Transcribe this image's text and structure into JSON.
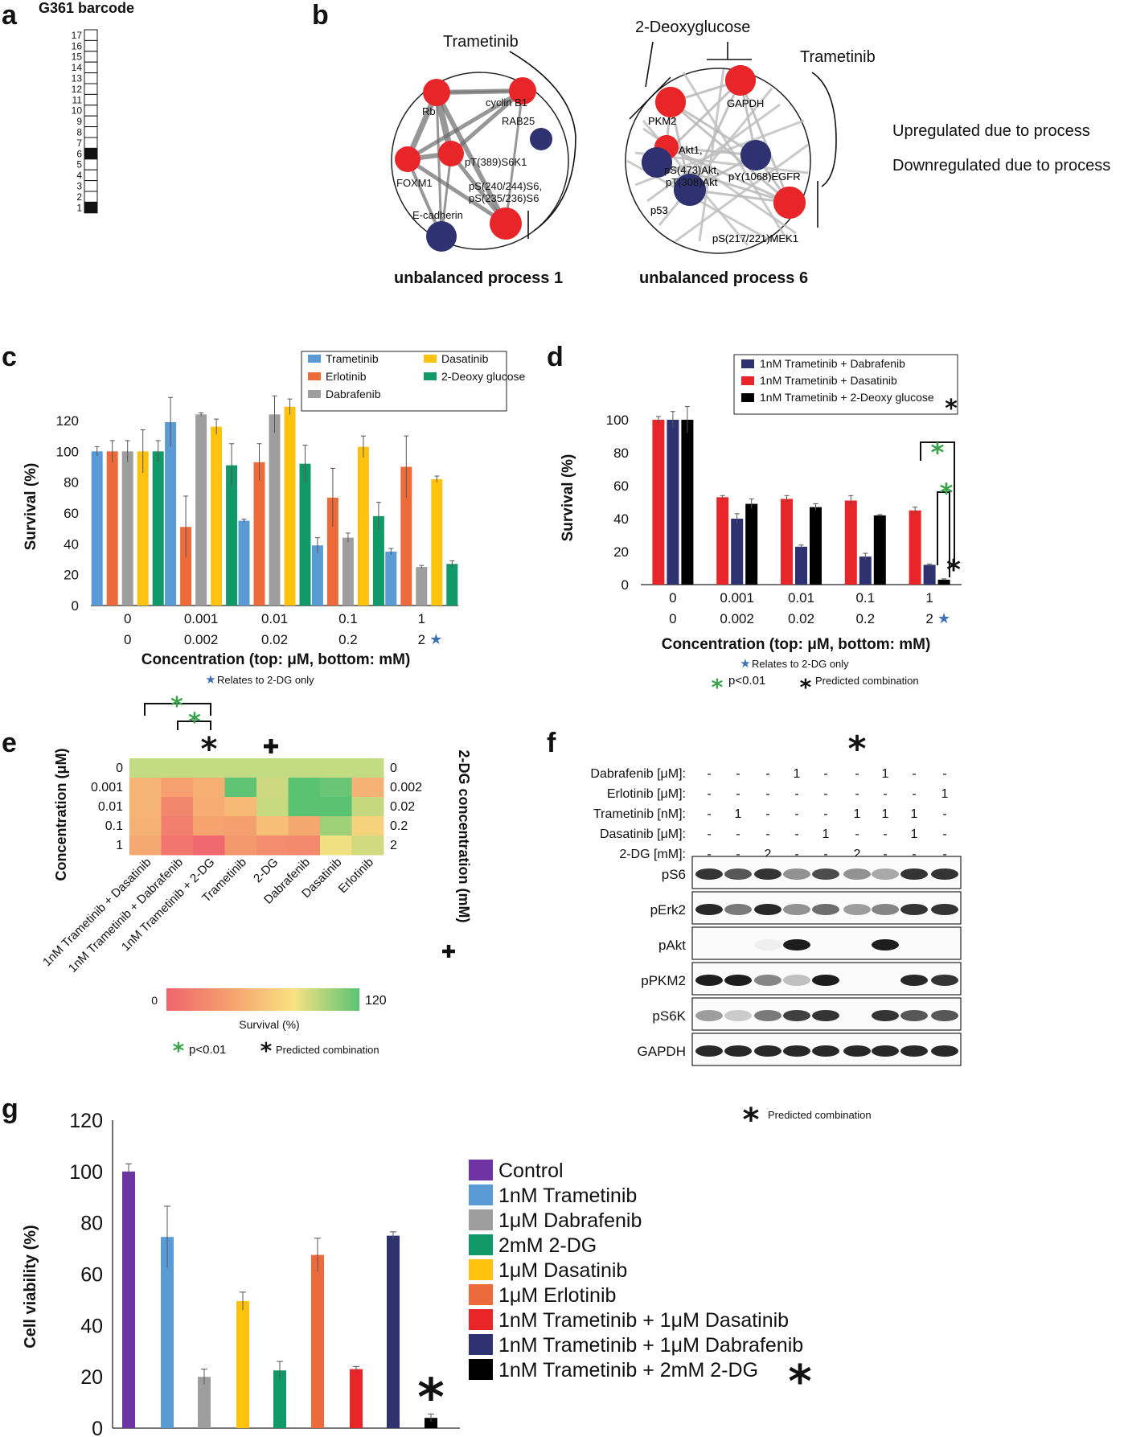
{
  "panel_labels": {
    "a": "a",
    "b": "b",
    "c": "c",
    "d": "d",
    "e": "e",
    "f": "f",
    "g": "g"
  },
  "colors": {
    "trametinib": "#5B9BD5",
    "erlotinib": "#ED6B3A",
    "dabrafenib": "#9E9E9E",
    "dasatinib": "#FFC20E",
    "dg": "#12996A",
    "red": "#E8262A",
    "navy": "#2F3270",
    "black": "#000000",
    "purple": "#6F33A3",
    "star_blue": "#3F6FB5",
    "star_green": "#3AA24A"
  },
  "panel_a": {
    "title": "G361 barcode",
    "rows": [
      "17",
      "16",
      "15",
      "14",
      "13",
      "12",
      "11",
      "10",
      "9",
      "8",
      "7",
      "6",
      "5",
      "4",
      "3",
      "2",
      "1"
    ],
    "filled": [
      "6",
      "1"
    ]
  },
  "panel_b": {
    "process1": {
      "label": "unbalanced process 1",
      "drug_top": "Trametinib",
      "nodes": [
        {
          "id": "Rb",
          "label": "Rb",
          "color": "red"
        },
        {
          "id": "cyclinB1",
          "label": "cyclin B1",
          "color": "red"
        },
        {
          "id": "RAB25",
          "label": "RAB25",
          "color": "navy"
        },
        {
          "id": "pT389",
          "label": "pT(389)S6K1",
          "color": "red"
        },
        {
          "id": "FOXM1",
          "label": "FOXM1",
          "color": "red"
        },
        {
          "id": "pS6",
          "label": "pS(240/244)S6,",
          "label2": "pS(235/236)S6",
          "color": "red"
        },
        {
          "id": "Ecad",
          "label": "E-cadherin",
          "color": "navy"
        }
      ]
    },
    "process6": {
      "label": "unbalanced process 6",
      "drug_top": "2-Deoxyglucose",
      "drug_right": "Trametinib",
      "nodes": [
        {
          "id": "PKM2",
          "label": "PKM2",
          "color": "red"
        },
        {
          "id": "GAPDH",
          "label": "GAPDH",
          "color": "red"
        },
        {
          "id": "Akt1",
          "label": "Akt1,",
          "color": "red"
        },
        {
          "id": "pS473",
          "label": "pS(473)Akt,",
          "label2": "pT(308)Akt",
          "color": "navy"
        },
        {
          "id": "EGFR",
          "label": "pY(1068)EGFR",
          "color": "navy"
        },
        {
          "id": "p53",
          "label": "p53",
          "color": "navy"
        },
        {
          "id": "MEK1",
          "label": "pS(217/221)MEK1",
          "color": "red"
        }
      ]
    },
    "legend": {
      "up": "Upregulated due to process",
      "down": "Downregulated due to process"
    }
  },
  "chart_data": [
    {
      "panel": "c",
      "type": "bar",
      "ylabel": "Survival (%)",
      "xlabel": "Concentration (top: μM, bottom: mM)",
      "ylim": [
        0,
        120
      ],
      "yticks": [
        0,
        20,
        40,
        60,
        80,
        100,
        120
      ],
      "categories_top": [
        "0",
        "0.001",
        "0.01",
        "0.1",
        "1"
      ],
      "categories_bottom": [
        "0",
        "0.002",
        "0.02",
        "0.2",
        "2"
      ],
      "series": [
        {
          "name": "Trametinib",
          "color": "#5B9BD5",
          "values": [
            100,
            119,
            55,
            39,
            35
          ],
          "errors": [
            3,
            16,
            1,
            5,
            2
          ]
        },
        {
          "name": "Erlotinib",
          "color": "#ED6B3A",
          "values": [
            100,
            51,
            93,
            70,
            90
          ],
          "errors": [
            7,
            20,
            12,
            19,
            20
          ]
        },
        {
          "name": "Dabrafenib",
          "color": "#9E9E9E",
          "values": [
            100,
            124,
            124,
            44,
            25
          ],
          "errors": [
            7,
            1,
            12,
            3,
            1
          ]
        },
        {
          "name": "Dasatinib",
          "color": "#FFC20E",
          "values": [
            100,
            116,
            129,
            103,
            82
          ],
          "errors": [
            14,
            5,
            5,
            7,
            2
          ]
        },
        {
          "name": "2-Deoxy glucose",
          "color": "#12996A",
          "values": [
            100,
            91,
            92,
            58,
            27
          ],
          "errors": [
            7,
            14,
            12,
            9,
            2
          ]
        }
      ],
      "note": "Relates to 2-DG only"
    },
    {
      "panel": "d",
      "type": "bar",
      "ylabel": "Survival (%)",
      "xlabel": "Concentration (top: μM, bottom: mM)",
      "ylim": [
        0,
        100
      ],
      "yticks": [
        0,
        20,
        40,
        60,
        80,
        100
      ],
      "categories_top": [
        "0",
        "0.001",
        "0.01",
        "0.1",
        "1"
      ],
      "categories_bottom": [
        "0",
        "0.002",
        "0.02",
        "0.2",
        "2"
      ],
      "series": [
        {
          "name": "1nM Trametinib + Dasatinib",
          "color": "#E8262A",
          "values": [
            100,
            53,
            52,
            51,
            45
          ],
          "errors": [
            2,
            1,
            2,
            3,
            2
          ]
        },
        {
          "name": "1nM Trametinib + Dabrafenib",
          "color": "#2F3270",
          "values": [
            100,
            40,
            23,
            17,
            12
          ],
          "errors": [
            5,
            3,
            1,
            2,
            0.5
          ]
        },
        {
          "name": "1nM Trametinib + 2-Deoxy glucose",
          "color": "#000000",
          "values": [
            100,
            49,
            47,
            42,
            3
          ],
          "errors": [
            8,
            3,
            2,
            0.5,
            0.5
          ]
        }
      ],
      "legend_order": [
        "1nM Trametinib + Dabrafenib",
        "1nM Trametinib + Dasatinib",
        "1nM Trametinib + 2-Deoxy glucose"
      ],
      "note": "Relates to 2-DG only",
      "sig": "p<0.01",
      "pred": "Predicted combination"
    },
    {
      "panel": "e",
      "type": "heatmap",
      "ylabel": "Concentration (μM)",
      "y2label": "2-DG concentration (mM)",
      "rows_left": [
        "0",
        "0.001",
        "0.01",
        "0.1",
        "1"
      ],
      "rows_right": [
        "0",
        "0.002",
        "0.02",
        "0.2",
        "2"
      ],
      "columns": [
        "1nM Trametinib + Dasatinib",
        "1nM Trametinib + Dabrafenib",
        "1nM Trametinib + 2-DG",
        "Trametinib",
        "2-DG",
        "Dabrafenib",
        "Dasatinib",
        "Erlotinib"
      ],
      "values": [
        [
          100,
          100,
          100,
          100,
          100,
          100,
          100,
          100
        ],
        [
          53,
          40,
          49,
          119,
          91,
          124,
          116,
          51
        ],
        [
          52,
          23,
          47,
          55,
          92,
          124,
          129,
          93
        ],
        [
          51,
          17,
          42,
          39,
          58,
          44,
          103,
          70
        ],
        [
          45,
          12,
          3,
          35,
          27,
          25,
          82,
          90
        ]
      ],
      "scale_min": "0",
      "scale_max": "120",
      "scale_label": "Survival (%)",
      "sig": "p<0.01",
      "pred": "Predicted combination"
    },
    {
      "panel": "g",
      "type": "bar",
      "ylabel": "Cell viability (%)",
      "ylim": [
        0,
        120
      ],
      "yticks": [
        0,
        20,
        40,
        60,
        80,
        100,
        120
      ],
      "series": [
        {
          "name": "Control",
          "color": "#6F33A3",
          "value": 100,
          "error": 3
        },
        {
          "name": "1nM Trametinib",
          "color": "#5B9BD5",
          "value": 74.5,
          "error": 12
        },
        {
          "name": "1μM Dabrafenib",
          "color": "#9E9E9E",
          "value": 20,
          "error": 3
        },
        {
          "name": "2mM 2-DG",
          "color": "#12996A",
          "value": 22.5,
          "error": 3.5
        },
        {
          "name": "1μM Dasatinib",
          "color": "#FFC20E",
          "value": 49.5,
          "error": 3.5
        },
        {
          "name": "1μM Erlotinib",
          "color": "#ED6B3A",
          "value": 67.5,
          "error": 6.5
        },
        {
          "name": "1nM Trametinib + 1μM Dasatinib",
          "color": "#E8262A",
          "value": 23,
          "error": 1
        },
        {
          "name": "1nM Trametinib + 1μM Dabrafenib",
          "color": "#2F3270",
          "value": 75,
          "error": 1.5
        },
        {
          "name": "1nM Trametinib + 2mM 2-DG",
          "color": "#000000",
          "value": 4,
          "error": 1.5
        }
      ],
      "bar_order": [
        "Control",
        "1nM Trametinib",
        "1μM Dabrafenib",
        "1μM Dasatinib",
        "2mM 2-DG",
        "1μM Erlotinib",
        "1nM Trametinib + 1μM Dasatinib",
        "1nM Trametinib + 1μM Dabrafenib",
        "1nM Trametinib + 2mM 2-DG"
      ]
    }
  ],
  "panel_f": {
    "treatments": [
      {
        "label": "Dabrafenib [μM]:",
        "values": [
          "-",
          "-",
          "-",
          "1",
          "-",
          "-",
          "1",
          "-",
          "-"
        ]
      },
      {
        "label": "Erlotinib [μM]:",
        "values": [
          "-",
          "-",
          "-",
          "-",
          "-",
          "-",
          "-",
          "-",
          "1"
        ]
      },
      {
        "label": "Trametinib [nM]:",
        "values": [
          "-",
          "1",
          "-",
          "-",
          "-",
          "1",
          "1",
          "1",
          "-"
        ]
      },
      {
        "label": "Dasatinib [μM]:",
        "values": [
          "-",
          "-",
          "-",
          "-",
          "1",
          "-",
          "-",
          "1",
          "-"
        ]
      },
      {
        "label": "2-DG [mM]:",
        "values": [
          "-",
          "-",
          "2",
          "-",
          "-",
          "2",
          "-",
          "-",
          "-"
        ]
      }
    ],
    "blots": [
      {
        "name": "pS6",
        "intensity": [
          0.85,
          0.7,
          0.85,
          0.45,
          0.75,
          0.45,
          0.35,
          0.85,
          0.85
        ]
      },
      {
        "name": "pErk2",
        "intensity": [
          0.9,
          0.55,
          0.9,
          0.45,
          0.6,
          0.4,
          0.5,
          0.85,
          0.85
        ]
      },
      {
        "name": "pAkt",
        "intensity": [
          0,
          0,
          0.05,
          0.95,
          0,
          0,
          0.95,
          0,
          0
        ]
      },
      {
        "name": "pPKM2",
        "intensity": [
          0.95,
          0.95,
          0.5,
          0.25,
          0.95,
          0,
          0,
          0.9,
          0.85
        ]
      },
      {
        "name": "pS6K",
        "intensity": [
          0.4,
          0.2,
          0.55,
          0.8,
          0.85,
          0,
          0.85,
          0.7,
          0.7
        ]
      },
      {
        "name": "GAPDH",
        "intensity": [
          0.9,
          0.9,
          0.9,
          0.9,
          0.9,
          0.9,
          0.9,
          0.9,
          0.9
        ]
      }
    ],
    "pred": "Predicted combination"
  }
}
